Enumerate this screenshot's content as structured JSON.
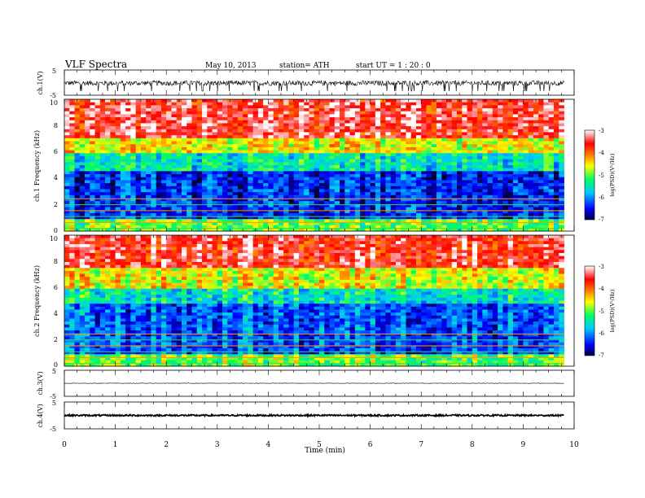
{
  "header": {
    "title": "VLF  Spectra",
    "date": "May 10, 2013",
    "station": "station= ATH",
    "start": "start  UT  =   1  : 20 : 0"
  },
  "chart_data": [
    {
      "type": "line",
      "name": "ch.1 waveform",
      "ylabel": "ch.1(V)",
      "ylim": [
        -5,
        5
      ],
      "yticks": [
        "5",
        "-5"
      ],
      "xlim": [
        0,
        10
      ],
      "x_end": 9.8,
      "amplitude_band": [
        -1.2,
        0.8
      ],
      "color": "#000000"
    },
    {
      "type": "heatmap",
      "name": "ch.1 spectrogram",
      "ylabel": "ch.1\nFrequency  (kHz)",
      "ylim": [
        0,
        10
      ],
      "yticks": [
        "0",
        "2",
        "4",
        "6",
        "8",
        "10"
      ],
      "xlim": [
        0,
        10
      ],
      "x_end": 9.8,
      "colorbar": {
        "label": "log(PSD)(V²/Hz)",
        "range": [
          -7,
          -3
        ],
        "ticks": [
          "-3",
          "-4",
          "-5",
          "-6",
          "-7"
        ]
      },
      "structure_khz": [
        {
          "band": [
            0,
            1.0
          ],
          "log_psd": -5.0,
          "note": "green/orange lines"
        },
        {
          "band": [
            1.0,
            4.6
          ],
          "log_psd": -6.4,
          "note": "blue"
        },
        {
          "band": [
            4.6,
            5.8
          ],
          "log_psd": -5.5,
          "note": "cyan/green"
        },
        {
          "band": [
            5.8,
            7.0
          ],
          "log_psd": -4.6,
          "note": "green/yellow"
        },
        {
          "band": [
            7.0,
            10.0
          ],
          "log_psd": -3.5,
          "note": "red"
        }
      ]
    },
    {
      "type": "heatmap",
      "name": "ch.2 spectrogram",
      "ylabel": "ch.2\nFrequency  (kHz)",
      "ylim": [
        0,
        10
      ],
      "yticks": [
        "0",
        "2",
        "4",
        "6",
        "8",
        "10"
      ],
      "xlim": [
        0,
        10
      ],
      "x_end": 9.8,
      "colorbar": {
        "label": "log(PSD)(V²/Hz)",
        "range": [
          -7,
          -3
        ],
        "ticks": [
          "-3",
          "-4",
          "-5",
          "-6",
          "-7"
        ]
      },
      "structure_khz": [
        {
          "band": [
            0,
            1.0
          ],
          "log_psd": -5.0,
          "note": "green/orange lines"
        },
        {
          "band": [
            1.0,
            4.8
          ],
          "log_psd": -6.2,
          "note": "blue"
        },
        {
          "band": [
            4.8,
            6.0
          ],
          "log_psd": -5.5,
          "note": "cyan/green"
        },
        {
          "band": [
            6.0,
            7.4
          ],
          "log_psd": -4.6,
          "note": "green/yellow"
        },
        {
          "band": [
            7.4,
            10.0
          ],
          "log_psd": -3.5,
          "note": "red"
        }
      ]
    },
    {
      "type": "line",
      "name": "ch.3 waveform",
      "ylabel": "ch.3(V)",
      "ylim": [
        -5,
        5
      ],
      "yticks": [
        "5",
        "-5"
      ],
      "xlim": [
        0,
        10
      ],
      "x_end": 9.8,
      "amplitude_band": [
        -0.1,
        0.1
      ],
      "color": "#000000"
    },
    {
      "type": "line",
      "name": "ch.4 waveform",
      "ylabel": "ch.4(V)",
      "ylim": [
        -5,
        5
      ],
      "yticks": [
        "5",
        "-5"
      ],
      "xlim": [
        0,
        10
      ],
      "x_end": 9.8,
      "amplitude_band": [
        -0.3,
        0.3
      ],
      "color": "#000000"
    }
  ],
  "x_axis": {
    "label": "Time  (min)",
    "range": [
      0,
      10
    ],
    "ticks": [
      "0",
      "1",
      "2",
      "3",
      "4",
      "5",
      "6",
      "7",
      "8",
      "9",
      "10"
    ]
  }
}
